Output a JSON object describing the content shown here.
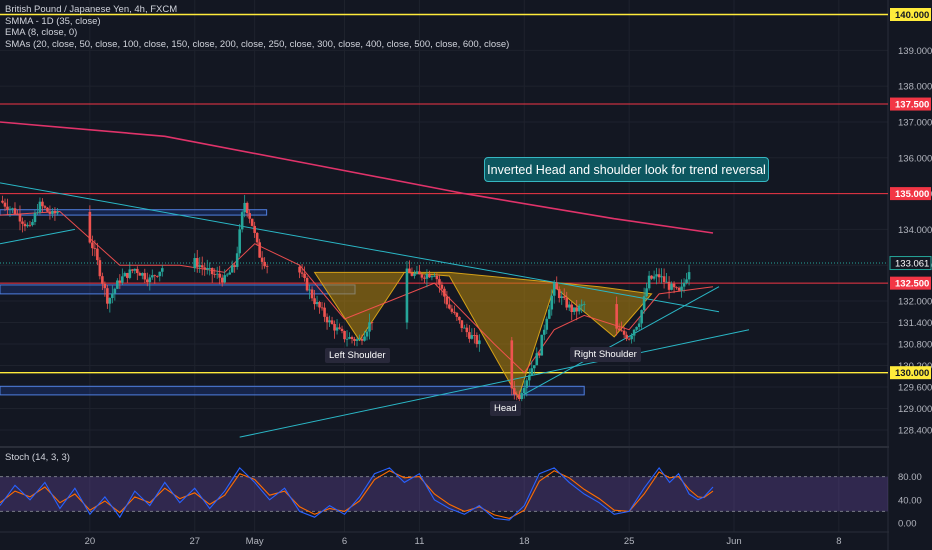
{
  "legend": {
    "title": "British Pound / Japanese Yen, 4h, FXCM",
    "line2": "SMMA - 1D (35, close)",
    "line3": "EMA (8, close, 0)",
    "line4": "SMAs (20, close, 50, close, 100, close, 150, close, 200, close, 250, close, 300, close, 400, close, 500, close, 600, close)"
  },
  "stoch_legend": "Stoch (14, 3, 3)",
  "annotations": {
    "callout": "Inverted Head and shoulder look for trend reversal",
    "left_shoulder": "Left Shoulder",
    "head": "Head",
    "right_shoulder": "Right Shoulder"
  },
  "colors": {
    "background": "#131722",
    "up_candle": "#26a69a",
    "down_candle": "#ef5350",
    "level_yellow": "#ffeb3b",
    "level_red": "#f23645",
    "trendline": "#2ab7c6",
    "smma": "#e0336a",
    "stoch_k": "#2962ff",
    "stoch_d": "#ff6d00",
    "pattern_fill": "#b8860b"
  },
  "chart_data": {
    "type": "candlestick",
    "symbol": "British Pound / Japanese Yen",
    "timeframe": "4h",
    "y_ticks": [
      128.4,
      129.0,
      129.6,
      130.2,
      130.8,
      131.4,
      132.0,
      133.0,
      134.0,
      135.0,
      136.0,
      137.0,
      138.0,
      139.0
    ],
    "y_tick_labels": [
      "128.400",
      "129.000",
      "129.600",
      "130.200",
      "130.800",
      "131.400",
      "132.000",
      "133.000",
      "134.000",
      "135.000",
      "136.000",
      "137.000",
      "138.000",
      "139.000"
    ],
    "x_labels": [
      {
        "label": "20",
        "day": 20
      },
      {
        "label": "27",
        "day": 27
      },
      {
        "label": "May",
        "day": 31
      },
      {
        "label": "6",
        "day": 37
      },
      {
        "label": "11",
        "day": 42
      },
      {
        "label": "18",
        "day": 49
      },
      {
        "label": "25",
        "day": 56
      },
      {
        "label": "Jun",
        "day": 63
      },
      {
        "label": "8",
        "day": 70
      }
    ],
    "highlight_levels": [
      {
        "value": 140.0,
        "label": "140.000",
        "color": "yellow"
      },
      {
        "value": 137.5,
        "label": "137.500",
        "color": "red"
      },
      {
        "value": 135.0,
        "label": "135.000",
        "color": "red"
      },
      {
        "value": 132.5,
        "label": "132.500",
        "color": "red"
      },
      {
        "value": 130.0,
        "label": "130.000",
        "color": "yellow"
      }
    ],
    "last_price": {
      "value": 133.061,
      "label": "133.061"
    },
    "price_path": [
      [
        14.0,
        134.8
      ],
      [
        15.0,
        134.5
      ],
      [
        16.0,
        134.0
      ],
      [
        16.6,
        134.7
      ],
      [
        17.5,
        134.4
      ],
      [
        18.5,
        134.7
      ],
      [
        19.5,
        134.2
      ],
      [
        20.3,
        133.4
      ],
      [
        20.8,
        132.6
      ],
      [
        21.2,
        132.0
      ],
      [
        22.0,
        132.6
      ],
      [
        23.0,
        132.9
      ],
      [
        24.0,
        132.6
      ],
      [
        25.0,
        133.0
      ],
      [
        26.0,
        132.8
      ],
      [
        27.0,
        133.1
      ],
      [
        28.0,
        132.8
      ],
      [
        29.0,
        132.6
      ],
      [
        29.7,
        133.0
      ],
      [
        30.3,
        134.8
      ],
      [
        30.8,
        134.2
      ],
      [
        31.3,
        133.3
      ],
      [
        32.0,
        132.9
      ],
      [
        33.0,
        133.0
      ],
      [
        34.0,
        132.8
      ],
      [
        35.0,
        132.0
      ],
      [
        36.0,
        131.4
      ],
      [
        37.0,
        131.0
      ],
      [
        38.0,
        130.9
      ],
      [
        39.0,
        131.6
      ],
      [
        40.0,
        132.4
      ],
      [
        41.0,
        132.8
      ],
      [
        42.0,
        132.7
      ],
      [
        43.0,
        132.8
      ],
      [
        44.0,
        131.8
      ],
      [
        45.0,
        131.2
      ],
      [
        46.0,
        130.8
      ],
      [
        47.0,
        130.3
      ],
      [
        48.0,
        129.7
      ],
      [
        48.6,
        129.3
      ],
      [
        49.0,
        129.7
      ],
      [
        50.0,
        130.6
      ],
      [
        50.5,
        131.6
      ],
      [
        51.0,
        132.4
      ],
      [
        51.6,
        132.0
      ],
      [
        52.3,
        131.7
      ],
      [
        53.0,
        131.9
      ],
      [
        54.0,
        131.6
      ],
      [
        55.0,
        131.2
      ],
      [
        56.0,
        131.0
      ],
      [
        56.7,
        131.5
      ],
      [
        57.3,
        132.6
      ],
      [
        58.0,
        132.7
      ],
      [
        58.7,
        132.4
      ],
      [
        59.4,
        132.2
      ],
      [
        60.0,
        132.9
      ],
      [
        60.6,
        132.1
      ],
      [
        61.0,
        132.1
      ],
      [
        61.3,
        133.3
      ],
      [
        61.6,
        133.06
      ]
    ],
    "smma_1d": [
      [
        14.0,
        137.0
      ],
      [
        25.0,
        136.6
      ],
      [
        35.0,
        135.8
      ],
      [
        45.0,
        135.0
      ],
      [
        55.0,
        134.3
      ],
      [
        61.6,
        133.9
      ]
    ],
    "ema_8": [
      [
        14.0,
        134.4
      ],
      [
        18.0,
        134.5
      ],
      [
        22.0,
        133.0
      ],
      [
        26.0,
        133.0
      ],
      [
        29.0,
        132.8
      ],
      [
        31.0,
        133.6
      ],
      [
        34.0,
        133.0
      ],
      [
        37.0,
        131.5
      ],
      [
        40.0,
        132.0
      ],
      [
        43.0,
        132.5
      ],
      [
        47.0,
        130.8
      ],
      [
        49.0,
        130.0
      ],
      [
        51.0,
        131.2
      ],
      [
        53.0,
        131.6
      ],
      [
        56.0,
        131.2
      ],
      [
        58.0,
        132.2
      ],
      [
        61.6,
        132.4
      ]
    ],
    "trendlines": [
      {
        "from": [
          14.0,
          135.3
        ],
        "to": [
          62.0,
          131.7
        ]
      },
      {
        "from": [
          14.0,
          133.6
        ],
        "to": [
          19.0,
          134.0
        ]
      },
      {
        "from": [
          30.0,
          128.2
        ],
        "to": [
          64.0,
          131.2
        ]
      },
      {
        "from": [
          49.0,
          129.4
        ],
        "to": [
          62.0,
          132.4
        ]
      }
    ],
    "zones": [
      {
        "from_day": 14.0,
        "to_day": 31.8,
        "top": 134.55,
        "bottom": 134.4
      },
      {
        "from_day": 14.0,
        "to_day": 37.7,
        "top": 132.45,
        "bottom": 132.2
      },
      {
        "from_day": 14.0,
        "to_day": 53.0,
        "top": 129.62,
        "bottom": 129.38
      }
    ],
    "pattern_polygon": [
      [
        35.0,
        132.8
      ],
      [
        38.0,
        130.9
      ],
      [
        41.0,
        132.8
      ],
      [
        44.0,
        132.7
      ],
      [
        48.6,
        129.3
      ],
      [
        51.0,
        132.4
      ],
      [
        55.0,
        131.0
      ],
      [
        57.5,
        132.2
      ],
      [
        54.0,
        132.4
      ],
      [
        44.0,
        132.8
      ]
    ],
    "stochastic": {
      "y_ticks": [
        0,
        40,
        80
      ],
      "y_tick_labels": [
        "0.00",
        "40.00",
        "80.00"
      ],
      "overbought": 80,
      "oversold": 20,
      "k": [
        [
          14.0,
          30
        ],
        [
          15.0,
          65
        ],
        [
          16.0,
          40
        ],
        [
          17.0,
          70
        ],
        [
          18.0,
          25
        ],
        [
          19.0,
          60
        ],
        [
          20.0,
          15
        ],
        [
          21.0,
          45
        ],
        [
          22.0,
          10
        ],
        [
          23.0,
          55
        ],
        [
          24.0,
          30
        ],
        [
          25.0,
          70
        ],
        [
          26.0,
          35
        ],
        [
          27.0,
          60
        ],
        [
          28.0,
          25
        ],
        [
          29.0,
          55
        ],
        [
          30.0,
          95
        ],
        [
          31.0,
          70
        ],
        [
          32.0,
          40
        ],
        [
          33.0,
          60
        ],
        [
          34.0,
          20
        ],
        [
          35.0,
          10
        ],
        [
          36.0,
          30
        ],
        [
          37.0,
          15
        ],
        [
          38.0,
          45
        ],
        [
          39.0,
          85
        ],
        [
          40.0,
          95
        ],
        [
          41.0,
          70
        ],
        [
          42.0,
          85
        ],
        [
          43.0,
          40
        ],
        [
          44.0,
          25
        ],
        [
          45.0,
          15
        ],
        [
          46.0,
          30
        ],
        [
          47.0,
          8
        ],
        [
          48.0,
          5
        ],
        [
          49.0,
          30
        ],
        [
          50.0,
          85
        ],
        [
          51.0,
          95
        ],
        [
          52.0,
          70
        ],
        [
          53.0,
          50
        ],
        [
          54.0,
          35
        ],
        [
          55.0,
          15
        ],
        [
          56.0,
          20
        ],
        [
          57.0,
          60
        ],
        [
          58.0,
          95
        ],
        [
          58.7,
          70
        ],
        [
          59.3,
          85
        ],
        [
          60.0,
          50
        ],
        [
          60.6,
          40
        ],
        [
          61.0,
          45
        ],
        [
          61.6,
          62
        ]
      ],
      "d": [
        [
          14.0,
          35
        ],
        [
          15.0,
          55
        ],
        [
          16.0,
          45
        ],
        [
          17.0,
          62
        ],
        [
          18.0,
          35
        ],
        [
          19.0,
          50
        ],
        [
          20.0,
          22
        ],
        [
          21.0,
          38
        ],
        [
          22.0,
          18
        ],
        [
          23.0,
          45
        ],
        [
          24.0,
          35
        ],
        [
          25.0,
          60
        ],
        [
          26.0,
          42
        ],
        [
          27.0,
          52
        ],
        [
          28.0,
          32
        ],
        [
          29.0,
          48
        ],
        [
          30.0,
          85
        ],
        [
          31.0,
          75
        ],
        [
          32.0,
          48
        ],
        [
          33.0,
          55
        ],
        [
          34.0,
          28
        ],
        [
          35.0,
          15
        ],
        [
          36.0,
          25
        ],
        [
          37.0,
          20
        ],
        [
          38.0,
          38
        ],
        [
          39.0,
          75
        ],
        [
          40.0,
          90
        ],
        [
          41.0,
          78
        ],
        [
          42.0,
          80
        ],
        [
          43.0,
          50
        ],
        [
          44.0,
          32
        ],
        [
          45.0,
          20
        ],
        [
          46.0,
          28
        ],
        [
          47.0,
          14
        ],
        [
          48.0,
          8
        ],
        [
          49.0,
          22
        ],
        [
          50.0,
          72
        ],
        [
          51.0,
          90
        ],
        [
          52.0,
          78
        ],
        [
          53.0,
          58
        ],
        [
          54.0,
          42
        ],
        [
          55.0,
          22
        ],
        [
          56.0,
          20
        ],
        [
          57.0,
          50
        ],
        [
          58.0,
          88
        ],
        [
          58.7,
          78
        ],
        [
          59.3,
          80
        ],
        [
          60.0,
          58
        ],
        [
          60.6,
          45
        ],
        [
          61.0,
          44
        ],
        [
          61.6,
          55
        ]
      ]
    }
  }
}
